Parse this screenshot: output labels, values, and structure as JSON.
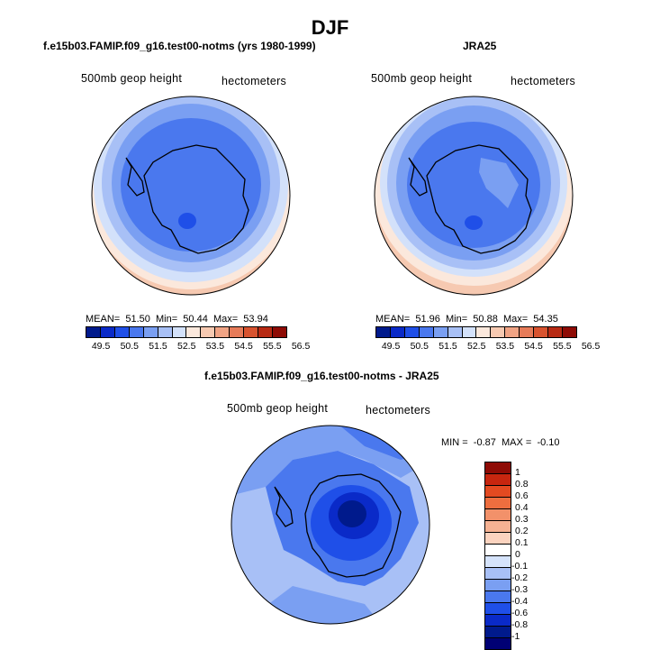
{
  "main_title": "DJF",
  "panels": [
    {
      "title": "f.e15b03.FAMIP.f09_g16.test00-notms (yrs 1980-1999)",
      "field_label": "500mb geop height",
      "units_label": "hectometers",
      "stats": {
        "mean_label": "MEAN=",
        "mean": "51.50",
        "min_label": "Min=",
        "min": "50.44",
        "max_label": "Max=",
        "max": "53.94"
      }
    },
    {
      "title": "JRA25",
      "field_label": "500mb geop height",
      "units_label": "hectometers",
      "stats": {
        "mean_label": "MEAN=",
        "mean": "51.96",
        "min_label": "Min=",
        "min": "50.88",
        "max_label": "Max=",
        "max": "54.35"
      }
    },
    {
      "title": "f.e15b03.FAMIP.f09_g16.test00-notms - JRA25",
      "field_label": "500mb geop height",
      "units_label": "hectometers",
      "stats": {
        "min_label": "MIN =",
        "min": "-0.87",
        "max_label": "MAX =",
        "max": "-0.10"
      }
    }
  ],
  "colorbar_abs": {
    "tick_labels": [
      "49.5",
      "50.5",
      "51.5",
      "52.5",
      "53.5",
      "54.5",
      "55.5",
      "56.5"
    ],
    "colors": [
      "#001a8c",
      "#0a2ac8",
      "#1f4fe8",
      "#4a78ee",
      "#7a9ff2",
      "#a8c0f6",
      "#d3e1fa",
      "#fbe8dc",
      "#f6c9b1",
      "#f0a384",
      "#e67b59",
      "#d8532f",
      "#b82a13",
      "#8e0b05"
    ]
  },
  "colorbar_diff": {
    "tick_labels": [
      "1",
      "0.8",
      "0.6",
      "0.4",
      "0.3",
      "0.2",
      "0.1",
      "0",
      "-0.1",
      "-0.2",
      "-0.3",
      "-0.4",
      "-0.6",
      "-0.8",
      "-1"
    ],
    "colors": [
      "#8e0b05",
      "#c7260f",
      "#e34a21",
      "#ee6e3f",
      "#f2916a",
      "#f6b293",
      "#fbd3bf",
      "#ffffff",
      "#d5e3fb",
      "#a8c0f6",
      "#7a9ff2",
      "#4a78ee",
      "#1f4fe8",
      "#0a2ac8",
      "#001a8c",
      "#000074"
    ]
  },
  "chart_data": [
    {
      "type": "polar-contour-map",
      "title": "f.e15b03.FAMIP.f09_g16.test00-notms (yrs 1980-1999)",
      "variable": "500mb geop height",
      "units": "hectometers",
      "mean": 51.5,
      "min": 50.44,
      "max": 53.94,
      "levels": [
        49.5,
        50,
        50.5,
        51,
        51.5,
        52,
        52.5,
        53,
        53.5,
        54,
        54.5,
        55,
        55.5,
        56,
        56.5
      ]
    },
    {
      "type": "polar-contour-map",
      "title": "JRA25",
      "variable": "500mb geop height",
      "units": "hectometers",
      "mean": 51.96,
      "min": 50.88,
      "max": 54.35,
      "levels": [
        49.5,
        50,
        50.5,
        51,
        51.5,
        52,
        52.5,
        53,
        53.5,
        54,
        54.5,
        55,
        55.5,
        56,
        56.5
      ]
    },
    {
      "type": "polar-contour-map",
      "title": "f.e15b03.FAMIP.f09_g16.test00-notms - JRA25",
      "variable": "500mb geop height",
      "units": "hectometers",
      "min": -0.87,
      "max": -0.1,
      "levels": [
        -1,
        -0.8,
        -0.6,
        -0.4,
        -0.3,
        -0.2,
        -0.1,
        0,
        0.1,
        0.2,
        0.3,
        0.4,
        0.6,
        0.8,
        1
      ]
    }
  ]
}
